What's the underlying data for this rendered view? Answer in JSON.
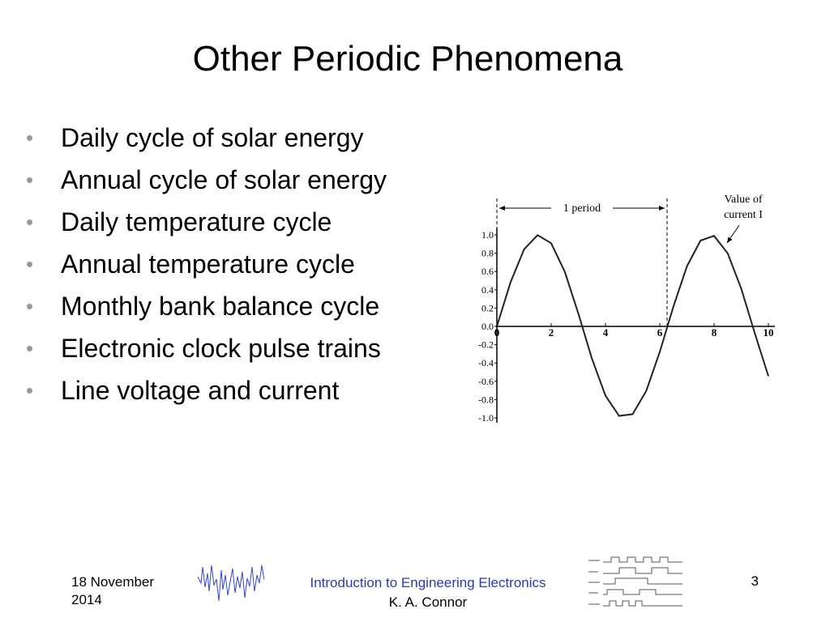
{
  "title": "Other Periodic Phenomena",
  "bullets": [
    "Daily cycle of solar energy",
    "Annual cycle of solar energy",
    "Daily temperature cycle",
    "Annual temperature cycle",
    "Monthly bank balance cycle",
    "Electronic clock pulse trains",
    "Line voltage and current"
  ],
  "figure": {
    "period_label": "1 period",
    "curve_label": [
      "Value of",
      "current I"
    ],
    "xlim": [
      0,
      10
    ],
    "ylim": [
      -1,
      1
    ],
    "xticks": [
      0,
      2,
      4,
      6,
      8,
      10
    ],
    "yticks": [
      {
        "value": 1,
        "label": "1.0"
      },
      {
        "value": 0.8,
        "label": "0.8"
      },
      {
        "value": 0.6,
        "label": "0.6"
      },
      {
        "value": 0.4,
        "label": "0.4"
      },
      {
        "value": 0.2,
        "label": "0.2"
      },
      {
        "value": 0,
        "label": "0.0"
      },
      {
        "value": -0.2,
        "label": "-0.2"
      },
      {
        "value": -0.4,
        "label": "-0.4"
      },
      {
        "value": -0.6,
        "label": "-0.6"
      },
      {
        "value": -0.8,
        "label": "-0.8"
      },
      {
        "value": -1,
        "label": "-1.0"
      }
    ]
  },
  "footer": {
    "date": "18 November 2014",
    "course": "Introduction to Engineering Electronics",
    "author": "K. A. Connor",
    "page": "3"
  }
}
